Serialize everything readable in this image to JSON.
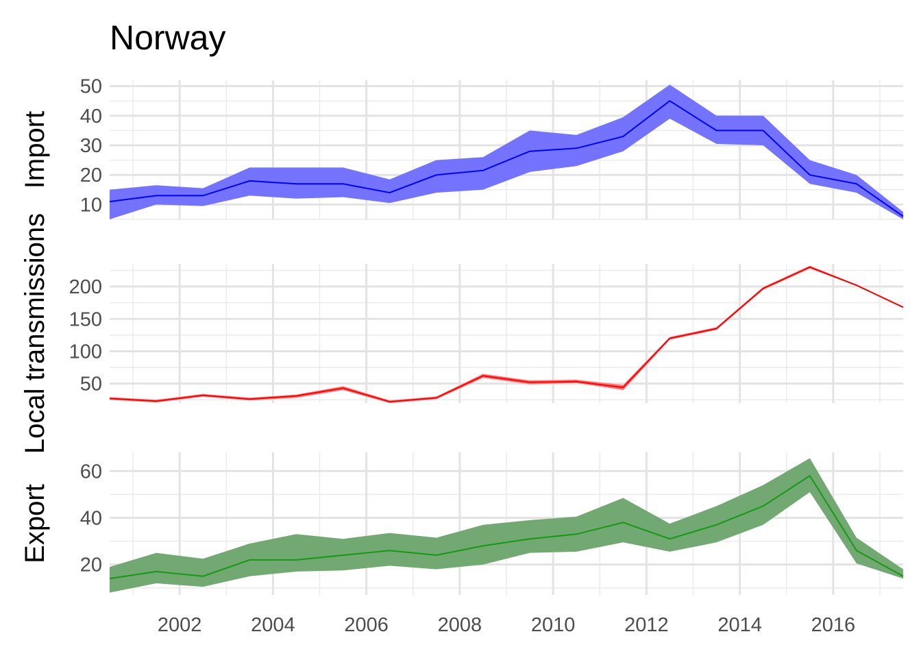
{
  "chart_data": [
    {
      "type": "area",
      "title": "Norway",
      "ylabel": "Import",
      "xlim": [
        2000.5,
        2017.5
      ],
      "ylim": [
        5,
        52
      ],
      "yticks": [
        10,
        20,
        30,
        40,
        50
      ],
      "colors": {
        "line": "#0000ff",
        "band": "#7373ff"
      },
      "x": [
        2000.5,
        2001.5,
        2002.5,
        2003.5,
        2004.5,
        2005.5,
        2006.5,
        2007.5,
        2008.5,
        2009.5,
        2010.5,
        2011.5,
        2012.5,
        2013.5,
        2014.5,
        2015.5,
        2016.5,
        2017.5
      ],
      "series": [
        {
          "values": [
            11,
            13,
            13,
            18,
            17,
            17,
            14,
            20,
            21.5,
            28,
            29,
            33,
            45,
            35,
            35,
            20,
            17,
            6
          ],
          "lower": [
            5,
            10,
            9.5,
            13,
            12,
            12.5,
            10.5,
            14,
            15,
            21,
            23,
            28,
            39,
            30.5,
            30,
            17,
            14,
            5
          ],
          "upper": [
            15,
            16.5,
            15.5,
            22.5,
            22.5,
            22.5,
            18.5,
            25,
            26,
            35,
            33.5,
            39.5,
            50.5,
            40,
            40,
            25,
            20,
            7.5
          ]
        }
      ]
    },
    {
      "type": "area",
      "ylabel": "Local transmissions",
      "xlim": [
        2000.5,
        2017.5
      ],
      "ylim": [
        20,
        235
      ],
      "yticks": [
        50,
        100,
        150,
        200
      ],
      "colors": {
        "line": "#ff0000",
        "band": "#ff7373"
      },
      "x": [
        2000.5,
        2001.5,
        2002.5,
        2003.5,
        2004.5,
        2005.5,
        2006.5,
        2007.5,
        2008.5,
        2009.5,
        2010.5,
        2011.5,
        2012.5,
        2013.5,
        2014.5,
        2015.5,
        2016.5,
        2017.5
      ],
      "series": [
        {
          "values": [
            27,
            23,
            32,
            26,
            31,
            43,
            22,
            28,
            62,
            52,
            53,
            44,
            120,
            135,
            197,
            230,
            202,
            168
          ],
          "lower": [
            25,
            21,
            30,
            24,
            28,
            40,
            20,
            26,
            59,
            49,
            51,
            40,
            118,
            133,
            195,
            228,
            201,
            167
          ],
          "upper": [
            29,
            25,
            34,
            28,
            33,
            46,
            24,
            30,
            65,
            55,
            56,
            48,
            122,
            137,
            199,
            232,
            203,
            169
          ]
        }
      ]
    },
    {
      "type": "area",
      "ylabel": "Export",
      "xlabel": "",
      "xlim": [
        2000.5,
        2017.5
      ],
      "ylim": [
        7,
        68
      ],
      "yticks": [
        20,
        40,
        60
      ],
      "xticks": [
        2002,
        2004,
        2006,
        2008,
        2010,
        2012,
        2014,
        2016
      ],
      "xtick_labels": [
        "2002",
        "2004",
        "2006",
        "2008",
        "2010",
        "2012",
        "2014",
        "2016"
      ],
      "colors": {
        "line": "#159915",
        "band": "#72a872"
      },
      "x": [
        2000.5,
        2001.5,
        2002.5,
        2003.5,
        2004.5,
        2005.5,
        2006.5,
        2007.5,
        2008.5,
        2009.5,
        2010.5,
        2011.5,
        2012.5,
        2013.5,
        2014.5,
        2015.5,
        2016.5,
        2017.5
      ],
      "series": [
        {
          "values": [
            14,
            17,
            15,
            22,
            22,
            24,
            26,
            24,
            28,
            31,
            33,
            38,
            31,
            37,
            45,
            58,
            26,
            15
          ],
          "lower": [
            8,
            12,
            10.5,
            15,
            17,
            17.5,
            19.5,
            18,
            20,
            25,
            25.5,
            29.5,
            25.5,
            29.5,
            37,
            51,
            20.5,
            14
          ],
          "upper": [
            19,
            25,
            22.5,
            29,
            33,
            31,
            33.5,
            31.5,
            37,
            39,
            40.5,
            48.5,
            37.5,
            45,
            54,
            65.5,
            31.5,
            18
          ]
        }
      ]
    }
  ]
}
